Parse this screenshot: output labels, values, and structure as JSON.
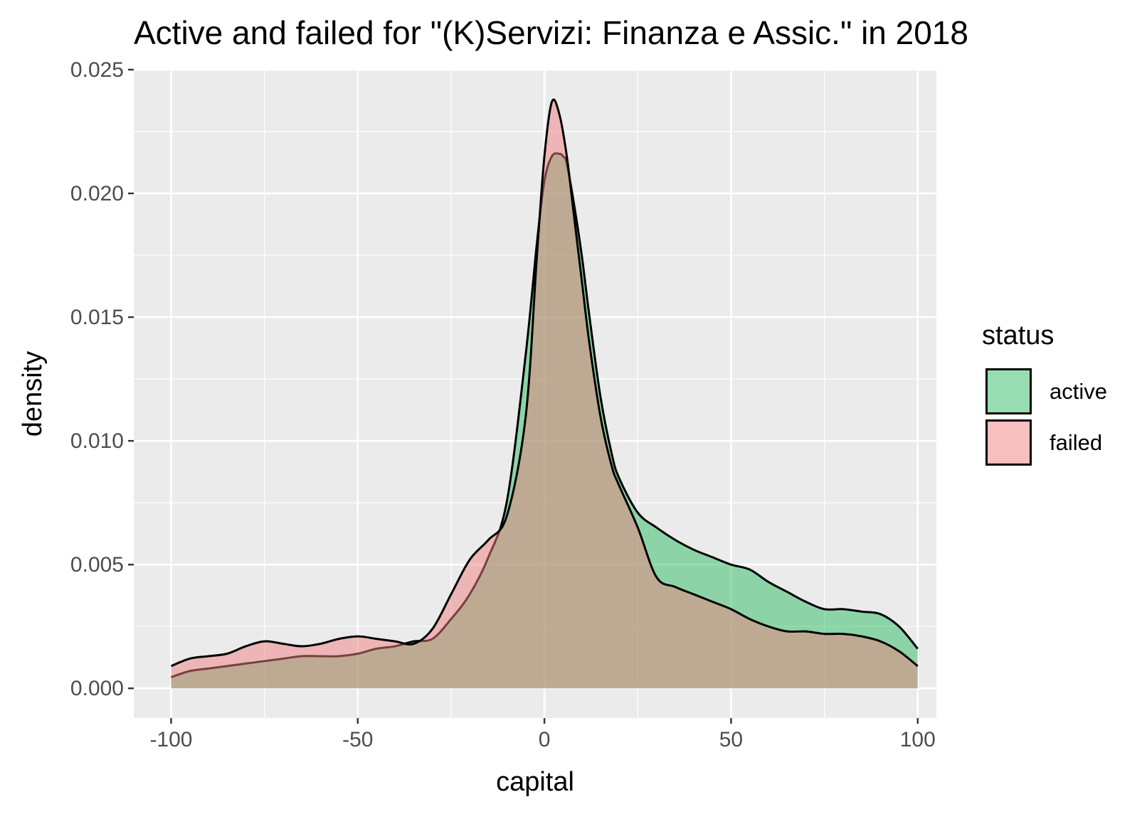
{
  "chart_data": {
    "type": "area",
    "title": "Active and failed for \"(K)Servizi: Finanza e Assic.\" in 2018",
    "xlabel": "capital",
    "ylabel": "density",
    "xlim": [
      -110,
      105
    ],
    "ylim": [
      -0.0012,
      0.025
    ],
    "x_ticks": [
      -100,
      -50,
      0,
      50,
      100
    ],
    "x_tick_labels": [
      "-100",
      "-50",
      "0",
      "50",
      "100"
    ],
    "y_ticks": [
      0,
      0.005,
      0.01,
      0.015,
      0.02,
      0.025
    ],
    "y_tick_labels": [
      "0.000",
      "0.005",
      "0.010",
      "0.015",
      "0.020",
      "0.025"
    ],
    "grid": true,
    "legend": {
      "title": "status",
      "placement": "right"
    },
    "series": [
      {
        "name": "active",
        "color": "#2DBE64",
        "x": [
          -100,
          -95,
          -90,
          -85,
          -80,
          -75,
          -70,
          -65,
          -60,
          -55,
          -50,
          -45,
          -40,
          -35,
          -30,
          -25,
          -20,
          -15,
          -10,
          -5,
          -2,
          0,
          2,
          4,
          5,
          6,
          8,
          10,
          12,
          15,
          18,
          20,
          25,
          30,
          35,
          40,
          45,
          50,
          55,
          60,
          65,
          70,
          75,
          80,
          85,
          90,
          95,
          100
        ],
        "y": [
          0.00045,
          0.0007,
          0.0008,
          0.0009,
          0.001,
          0.0011,
          0.0012,
          0.0013,
          0.0013,
          0.0013,
          0.0014,
          0.0016,
          0.0017,
          0.0019,
          0.002,
          0.0028,
          0.0038,
          0.0053,
          0.0076,
          0.0135,
          0.018,
          0.0205,
          0.0215,
          0.0216,
          0.0215,
          0.0212,
          0.0195,
          0.0175,
          0.0151,
          0.0118,
          0.0095,
          0.0085,
          0.0071,
          0.0065,
          0.006,
          0.0056,
          0.0053,
          0.005,
          0.0048,
          0.0043,
          0.0039,
          0.0035,
          0.0032,
          0.0032,
          0.0031,
          0.003,
          0.0025,
          0.0016
        ]
      },
      {
        "name": "failed",
        "color": "#F08080",
        "x": [
          -100,
          -95,
          -90,
          -85,
          -80,
          -75,
          -70,
          -65,
          -60,
          -55,
          -50,
          -45,
          -40,
          -35,
          -30,
          -25,
          -20,
          -15,
          -10,
          -5,
          -2,
          0,
          2,
          4,
          6,
          8,
          10,
          12,
          15,
          18,
          20,
          25,
          30,
          35,
          40,
          45,
          50,
          55,
          60,
          65,
          70,
          75,
          80,
          85,
          90,
          95,
          100
        ],
        "y": [
          0.0009,
          0.0012,
          0.0013,
          0.0014,
          0.0017,
          0.0019,
          0.0018,
          0.0017,
          0.0018,
          0.002,
          0.0021,
          0.002,
          0.0019,
          0.0018,
          0.0024,
          0.0038,
          0.0052,
          0.006,
          0.007,
          0.011,
          0.0175,
          0.0215,
          0.0237,
          0.0232,
          0.0215,
          0.019,
          0.0165,
          0.014,
          0.011,
          0.009,
          0.0082,
          0.0065,
          0.0045,
          0.0041,
          0.0038,
          0.0035,
          0.0032,
          0.0028,
          0.0025,
          0.0023,
          0.0023,
          0.0022,
          0.0022,
          0.0021,
          0.0019,
          0.0015,
          0.0009
        ]
      }
    ]
  }
}
